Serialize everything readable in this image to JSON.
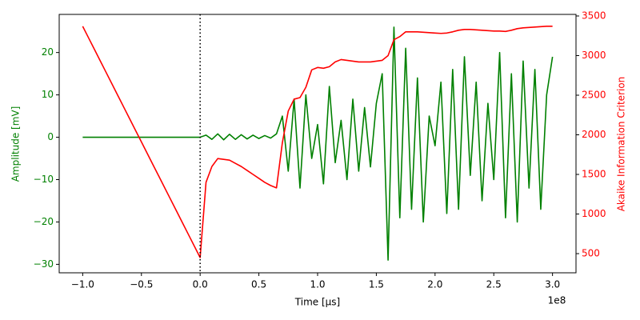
{
  "chart_data": {
    "type": "line",
    "xlabel": "Time [µs]",
    "ylabel": "Amplitude [mV]",
    "y2label": "Akaike Information Criterion",
    "x_offset_label": "1e8",
    "x": [
      -100000000,
      -95000000,
      -90000000,
      -85000000,
      -80000000,
      -75000000,
      -70000000,
      -65000000,
      -60000000,
      -55000000,
      -50000000,
      -45000000,
      -40000000,
      -35000000,
      -30000000,
      -25000000,
      -20000000,
      -15000000,
      -10000000,
      -5000000,
      0,
      5000000,
      10000000,
      15000000,
      20000000,
      25000000,
      30000000,
      35000000,
      40000000,
      45000000,
      50000000,
      55000000,
      60000000,
      65000000,
      70000000,
      75000000,
      80000000,
      85000000,
      90000000,
      95000000,
      100000000,
      105000000,
      110000000,
      115000000,
      120000000,
      125000000,
      130000000,
      135000000,
      140000000,
      145000000,
      150000000,
      155000000,
      160000000,
      165000000,
      170000000,
      175000000,
      180000000,
      185000000,
      190000000,
      195000000,
      200000000,
      205000000,
      210000000,
      215000000,
      220000000,
      225000000,
      230000000,
      235000000,
      240000000,
      245000000,
      250000000,
      255000000,
      260000000,
      265000000,
      270000000,
      275000000,
      280000000,
      285000000,
      290000000,
      295000000,
      300000000
    ],
    "series": [
      {
        "name": "Amplitude",
        "color": "#008000",
        "axis": "y",
        "values": [
          0,
          0,
          0,
          0,
          0,
          0,
          0,
          0,
          0,
          0,
          0,
          0,
          0,
          0,
          0,
          0,
          0,
          0,
          0,
          0,
          0,
          0.5,
          -0.5,
          0.8,
          -0.6,
          0.7,
          -0.5,
          0.6,
          -0.4,
          0.5,
          -0.3,
          0.4,
          -0.2,
          0.8,
          5,
          -8,
          9,
          -12,
          10,
          -5,
          3,
          -11,
          12,
          -6,
          4,
          -10,
          9,
          -8,
          7,
          -7,
          8,
          15,
          -29,
          26,
          -19,
          21,
          -17,
          14,
          -20,
          5,
          -2,
          13,
          -18,
          16,
          -17,
          19,
          -9,
          13,
          -15,
          8,
          -10,
          20,
          -19,
          15,
          -20,
          18,
          -12,
          16,
          -17,
          10,
          19
        ]
      },
      {
        "name": "AIC",
        "color": "#ff0000",
        "axis": "y2",
        "values": [
          3370,
          3224,
          3078,
          2932,
          2786,
          2640,
          2494,
          2348,
          2202,
          2056,
          1910,
          1764,
          1618,
          1472,
          1326,
          1180,
          1034,
          888,
          742,
          596,
          450,
          1400,
          1600,
          1700,
          1690,
          1680,
          1640,
          1600,
          1550,
          1500,
          1450,
          1400,
          1360,
          1330,
          1900,
          2300,
          2450,
          2470,
          2600,
          2820,
          2850,
          2840,
          2860,
          2920,
          2950,
          2940,
          2930,
          2920,
          2920,
          2920,
          2930,
          2940,
          3000,
          3200,
          3240,
          3300,
          3300,
          3300,
          3295,
          3290,
          3285,
          3280,
          3285,
          3300,
          3320,
          3330,
          3330,
          3325,
          3320,
          3315,
          3310,
          3310,
          3305,
          3320,
          3340,
          3350,
          3355,
          3360,
          3365,
          3370,
          3370
        ]
      }
    ],
    "vline_x": 0,
    "xlim": [
      -120000000,
      320000000
    ],
    "xticks": [
      {
        "value": -100000000,
        "label": "−1.0"
      },
      {
        "value": -50000000,
        "label": "−0.5"
      },
      {
        "value": 0,
        "label": "0.0"
      },
      {
        "value": 50000000,
        "label": "0.5"
      },
      {
        "value": 100000000,
        "label": "1.0"
      },
      {
        "value": 150000000,
        "label": "1.5"
      },
      {
        "value": 200000000,
        "label": "2.0"
      },
      {
        "value": 250000000,
        "label": "2.5"
      },
      {
        "value": 300000000,
        "label": "3.0"
      }
    ],
    "ylim": [
      -32,
      29
    ],
    "yticks": [
      {
        "value": -30,
        "label": "−30"
      },
      {
        "value": -20,
        "label": "−20"
      },
      {
        "value": -10,
        "label": "−10"
      },
      0,
      10,
      20
    ],
    "y2lim": [
      258,
      3520
    ],
    "y2ticks": [
      500,
      1000,
      1500,
      2000,
      2500,
      3000,
      3500
    ]
  }
}
